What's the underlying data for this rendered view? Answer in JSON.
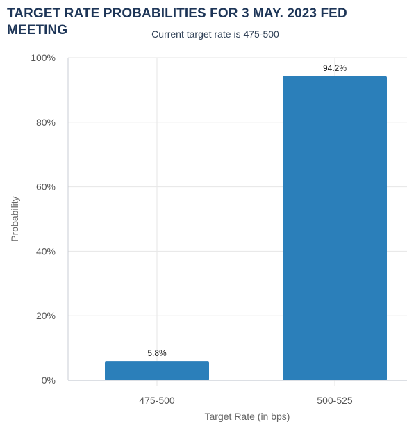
{
  "chart_data": {
    "type": "bar",
    "title": "TARGET RATE PROBABILITIES FOR 3 MAY. 2023 FED MEETING",
    "subtitle": "Current target rate is 475-500",
    "xlabel": "Target Rate (in bps)",
    "ylabel": "Probability",
    "categories": [
      "475-500",
      "500-525"
    ],
    "values": [
      5.8,
      94.2
    ],
    "data_labels": [
      "5.8%",
      "94.2%"
    ],
    "ylim": [
      0,
      100
    ],
    "yticks": [
      "0%",
      "20%",
      "40%",
      "60%",
      "80%",
      "100%"
    ],
    "grid": true,
    "colors": {
      "bar": "#2b7fba",
      "grid": "#e6e6e6",
      "axis": "#c8ccd4",
      "text": "#555555",
      "title": "#1d3557"
    }
  }
}
